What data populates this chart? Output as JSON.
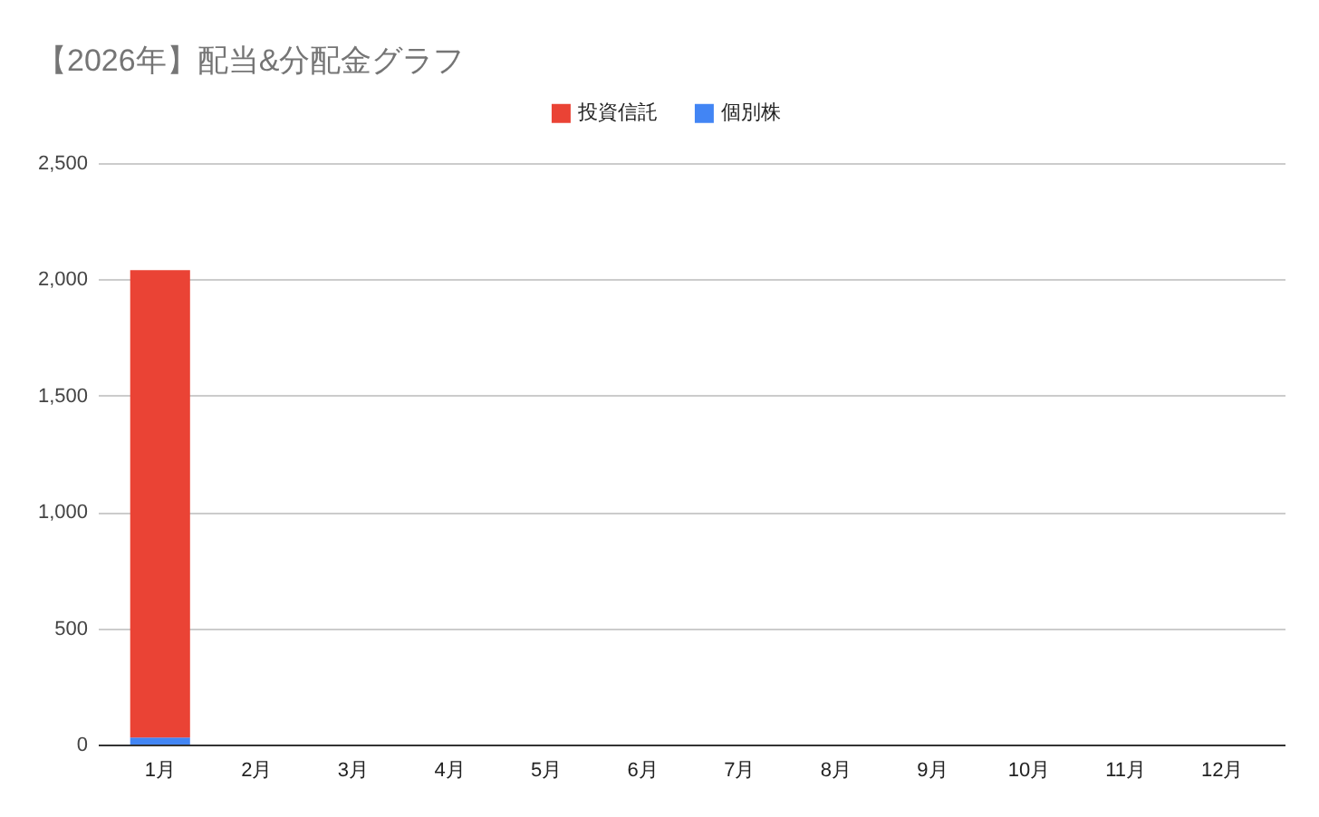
{
  "chart_data": {
    "type": "bar",
    "title": "【2026年】配当&分配金グラフ",
    "categories": [
      "1月",
      "2月",
      "3月",
      "4月",
      "5月",
      "6月",
      "7月",
      "8月",
      "9月",
      "10月",
      "11月",
      "12月"
    ],
    "series": [
      {
        "name": "個別株",
        "color": "#4285f4",
        "values": [
          30,
          null,
          null,
          null,
          null,
          null,
          null,
          null,
          null,
          null,
          null,
          null
        ]
      },
      {
        "name": "投資信託",
        "color": "#ea4335",
        "values": [
          2010,
          null,
          null,
          null,
          null,
          null,
          null,
          null,
          null,
          null,
          null,
          null
        ]
      }
    ],
    "stacked": true,
    "ylim": [
      0,
      2500
    ],
    "yticks": [
      0,
      500,
      {
        "value": 1000,
        "label": "1,000"
      },
      {
        "value": 1500,
        "label": "1,500"
      },
      {
        "value": 2000,
        "label": "2,000"
      },
      {
        "value": 2500,
        "label": "2,500"
      }
    ],
    "grid": "y",
    "legend": "top"
  }
}
